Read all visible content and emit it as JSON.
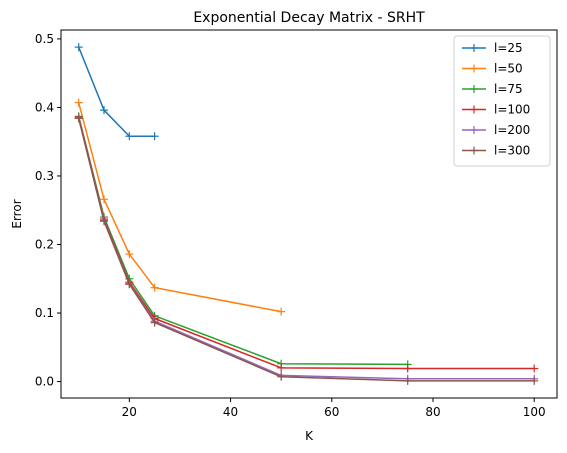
{
  "chart_data": {
    "type": "line",
    "title": "Exponential Decay Matrix - SRHT",
    "xlabel": "K",
    "ylabel": "Error",
    "xlim": [
      6.5,
      104.5
    ],
    "ylim": [
      -0.024,
      0.513
    ],
    "xticks": [
      20,
      40,
      60,
      80,
      100
    ],
    "yticks": [
      0.0,
      0.1,
      0.2,
      0.3,
      0.4,
      0.5
    ],
    "xtick_labels": [
      "20",
      "40",
      "60",
      "80",
      "100"
    ],
    "ytick_labels": [
      "0.0",
      "0.1",
      "0.2",
      "0.3",
      "0.4",
      "0.5"
    ],
    "grid": false,
    "legend_position": "top-right",
    "marker": "+",
    "series": [
      {
        "name": "l=25",
        "color": "#1f77b4",
        "x": [
          10,
          15,
          20,
          25
        ],
        "y": [
          0.488,
          0.396,
          0.358,
          0.358
        ]
      },
      {
        "name": "l=50",
        "color": "#ff7f0e",
        "x": [
          10,
          15,
          20,
          25,
          50
        ],
        "y": [
          0.407,
          0.266,
          0.186,
          0.137,
          0.102
        ]
      },
      {
        "name": "l=75",
        "color": "#2ca02c",
        "x": [
          10,
          15,
          20,
          25,
          50,
          75
        ],
        "y": [
          0.387,
          0.24,
          0.15,
          0.096,
          0.026,
          0.025
        ]
      },
      {
        "name": "l=100",
        "color": "#d62728",
        "x": [
          10,
          15,
          20,
          25,
          50,
          75,
          100
        ],
        "y": [
          0.386,
          0.237,
          0.145,
          0.092,
          0.02,
          0.019,
          0.019
        ]
      },
      {
        "name": "l=200",
        "color": "#9467bd",
        "x": [
          10,
          15,
          20,
          25,
          50,
          75,
          100
        ],
        "y": [
          0.385,
          0.235,
          0.143,
          0.088,
          0.009,
          0.004,
          0.004
        ]
      },
      {
        "name": "l=300",
        "color": "#8c564b",
        "x": [
          10,
          15,
          20,
          25,
          50,
          75,
          100
        ],
        "y": [
          0.384,
          0.234,
          0.142,
          0.086,
          0.007,
          0.001,
          0.001
        ]
      }
    ]
  }
}
